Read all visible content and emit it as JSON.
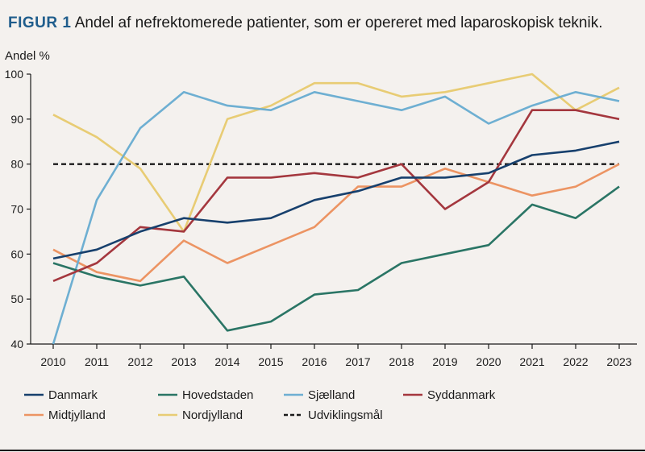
{
  "figure": {
    "label": "FIGUR 1",
    "caption": "Andel af nefrektomerede patienter, som er opereret med laparoskopisk teknik."
  },
  "chart_data": {
    "type": "line",
    "ylabel": "Andel %",
    "xlabel": "",
    "x": [
      2010,
      2011,
      2012,
      2013,
      2014,
      2015,
      2016,
      2017,
      2018,
      2019,
      2020,
      2021,
      2022,
      2023
    ],
    "ylim": [
      40,
      100
    ],
    "yticks": [
      40,
      50,
      60,
      70,
      80,
      90,
      100
    ],
    "grid": false,
    "legend_position": "bottom",
    "series": [
      {
        "name": "Danmark",
        "color": "#17406d",
        "dash": false,
        "values": [
          59,
          61,
          65,
          68,
          67,
          68,
          72,
          74,
          77,
          77,
          78,
          82,
          83,
          85
        ]
      },
      {
        "name": "Hovedstaden",
        "color": "#2a7565",
        "dash": false,
        "values": [
          58,
          55,
          53,
          55,
          43,
          45,
          51,
          52,
          58,
          60,
          62,
          71,
          68,
          75
        ]
      },
      {
        "name": "Sjælland",
        "color": "#6eafd2",
        "dash": false,
        "values": [
          40,
          72,
          88,
          96,
          93,
          92,
          96,
          94,
          92,
          95,
          89,
          93,
          96,
          94
        ]
      },
      {
        "name": "Syddanmark",
        "color": "#a4373e",
        "dash": false,
        "values": [
          54,
          58,
          66,
          65,
          77,
          77,
          78,
          77,
          80,
          70,
          76,
          92,
          92,
          90
        ]
      },
      {
        "name": "Midtjylland",
        "color": "#ec9463",
        "dash": false,
        "values": [
          61,
          56,
          54,
          63,
          58,
          62,
          66,
          75,
          75,
          79,
          76,
          73,
          75,
          80
        ]
      },
      {
        "name": "Nordjylland",
        "color": "#e8cc74",
        "dash": false,
        "values": [
          91,
          86,
          79,
          65,
          90,
          93,
          98,
          98,
          95,
          96,
          98,
          100,
          92,
          97
        ]
      },
      {
        "name": "Udviklingsmål",
        "color": "#1a1a1a",
        "dash": true,
        "values": [
          80,
          80,
          80,
          80,
          80,
          80,
          80,
          80,
          80,
          80,
          80,
          80,
          80,
          80
        ]
      }
    ]
  }
}
